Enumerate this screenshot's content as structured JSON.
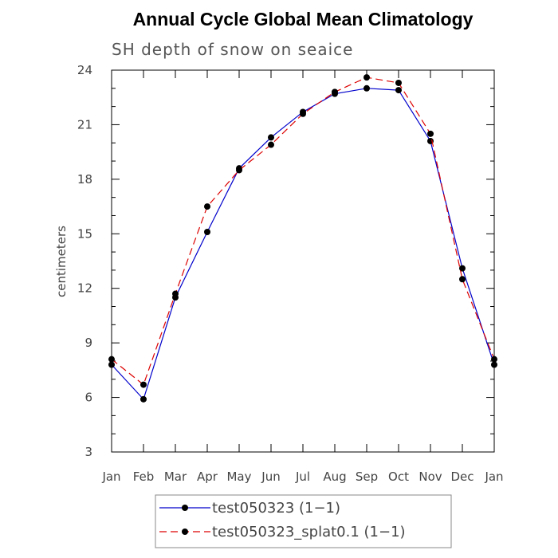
{
  "chart_data": {
    "type": "line",
    "title": "Annual Cycle Global Mean Climatology",
    "subtitle": "SH depth of snow on seaice",
    "ylabel": "centimeters",
    "xlabel": "",
    "categories": [
      "Jan",
      "Feb",
      "Mar",
      "Apr",
      "May",
      "Jun",
      "Jul",
      "Aug",
      "Sep",
      "Oct",
      "Nov",
      "Dec",
      "Jan"
    ],
    "ylim": [
      3,
      24
    ],
    "yticks": [
      "3",
      "6",
      "9",
      "12",
      "15",
      "18",
      "21",
      "24"
    ],
    "legend_position": "bottom",
    "series": [
      {
        "name": "test050323 (1−1)",
        "color": "#0000cc",
        "dash": "solid",
        "marker": "filled-circle",
        "values": [
          7.8,
          5.9,
          11.5,
          15.1,
          18.6,
          20.3,
          21.7,
          22.7,
          23.0,
          22.9,
          20.1,
          13.1,
          7.8
        ]
      },
      {
        "name": "test050323_splat0.1 (1−1)",
        "color": "#dd0000",
        "dash": "dashed",
        "marker": "filled-circle",
        "values": [
          8.1,
          6.7,
          11.7,
          16.5,
          18.5,
          19.9,
          21.6,
          22.8,
          23.6,
          23.3,
          20.5,
          12.5,
          8.1
        ]
      }
    ]
  }
}
